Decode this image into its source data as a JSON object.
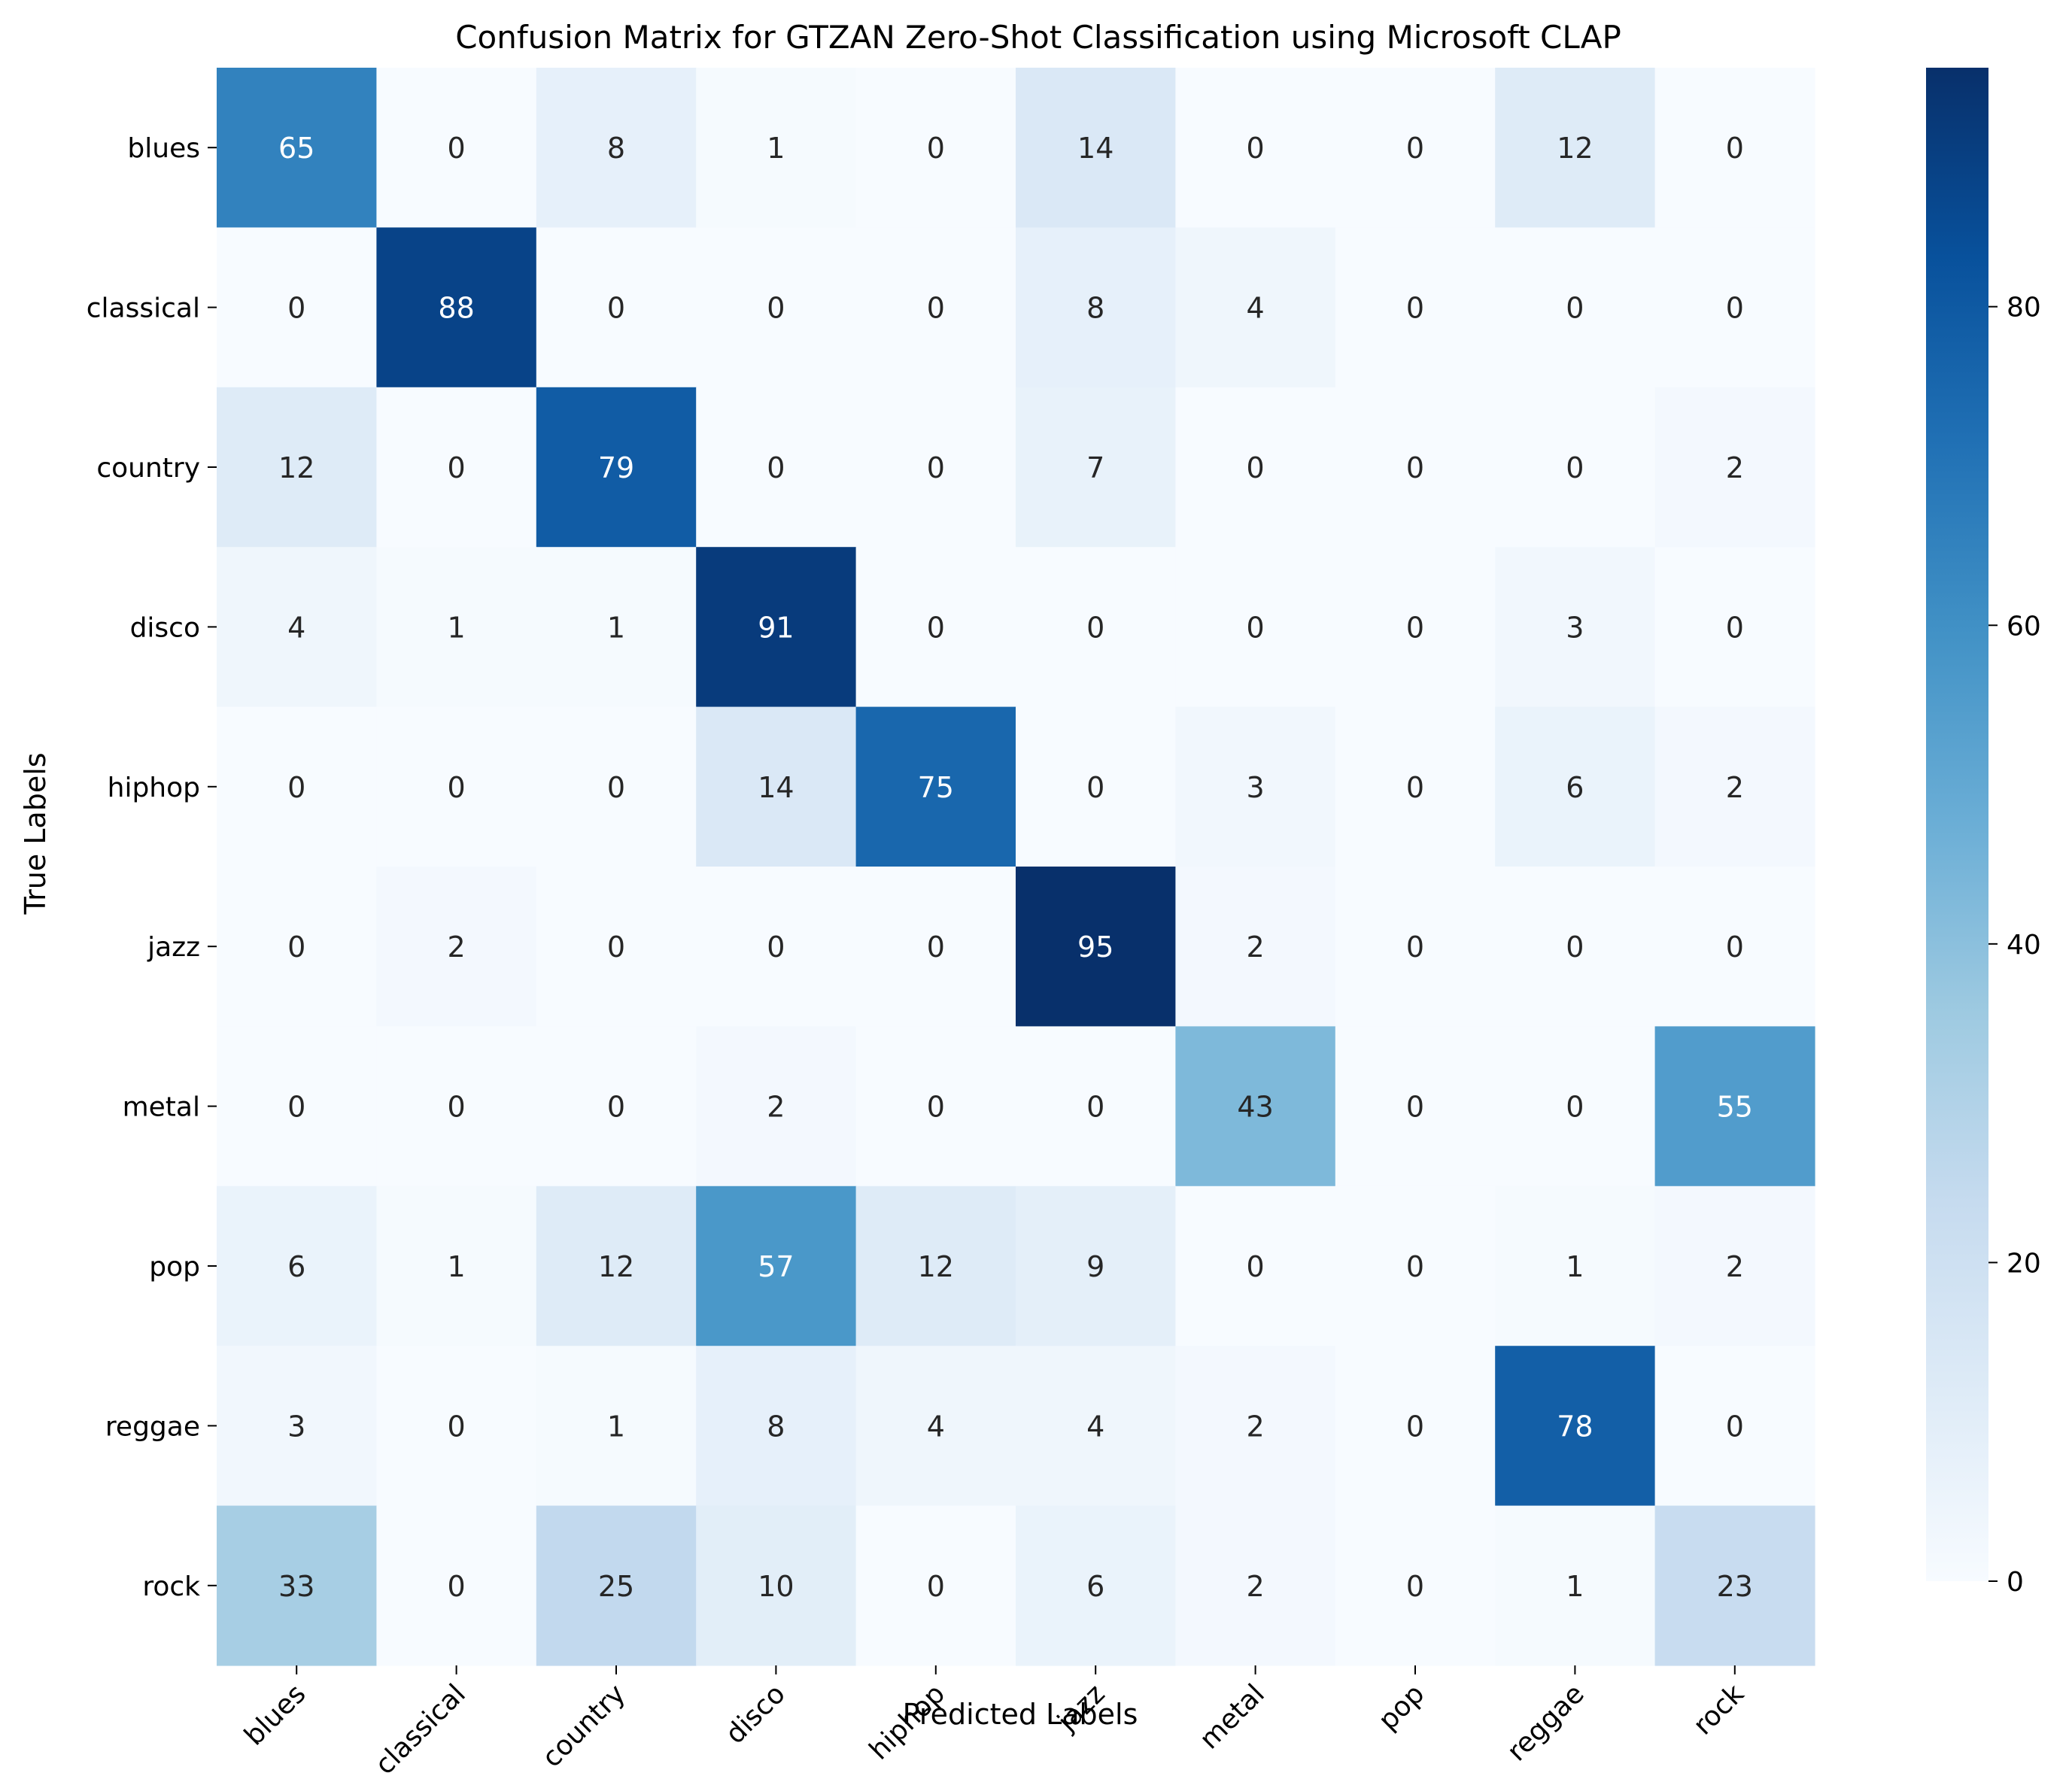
{
  "chart_data": {
    "type": "heatmap",
    "title": "Confusion Matrix for GTZAN Zero-Shot Classification using Microsoft CLAP",
    "xlabel": "Predicted Labels",
    "ylabel": "True Labels",
    "x_categories": [
      "blues",
      "classical",
      "country",
      "disco",
      "hiphop",
      "jazz",
      "metal",
      "pop",
      "reggae",
      "rock"
    ],
    "y_categories": [
      "blues",
      "classical",
      "country",
      "disco",
      "hiphop",
      "jazz",
      "metal",
      "pop",
      "reggae",
      "rock"
    ],
    "values": [
      [
        65,
        0,
        8,
        1,
        0,
        14,
        0,
        0,
        12,
        0
      ],
      [
        0,
        88,
        0,
        0,
        0,
        8,
        4,
        0,
        0,
        0
      ],
      [
        12,
        0,
        79,
        0,
        0,
        7,
        0,
        0,
        0,
        2
      ],
      [
        4,
        1,
        1,
        91,
        0,
        0,
        0,
        0,
        3,
        0
      ],
      [
        0,
        0,
        0,
        14,
        75,
        0,
        3,
        0,
        6,
        2
      ],
      [
        0,
        2,
        0,
        0,
        0,
        95,
        2,
        0,
        0,
        0
      ],
      [
        0,
        0,
        0,
        2,
        0,
        0,
        43,
        0,
        0,
        55
      ],
      [
        6,
        1,
        12,
        57,
        12,
        9,
        0,
        0,
        1,
        2
      ],
      [
        3,
        0,
        1,
        8,
        4,
        4,
        2,
        0,
        78,
        0
      ],
      [
        33,
        0,
        25,
        10,
        0,
        6,
        2,
        0,
        1,
        23
      ]
    ],
    "colormap": "Blues",
    "color_range": [
      0,
      95
    ],
    "colorbar_ticks": [
      "0",
      "20",
      "40",
      "60",
      "80"
    ],
    "annotations": "cell values",
    "grid": false
  }
}
